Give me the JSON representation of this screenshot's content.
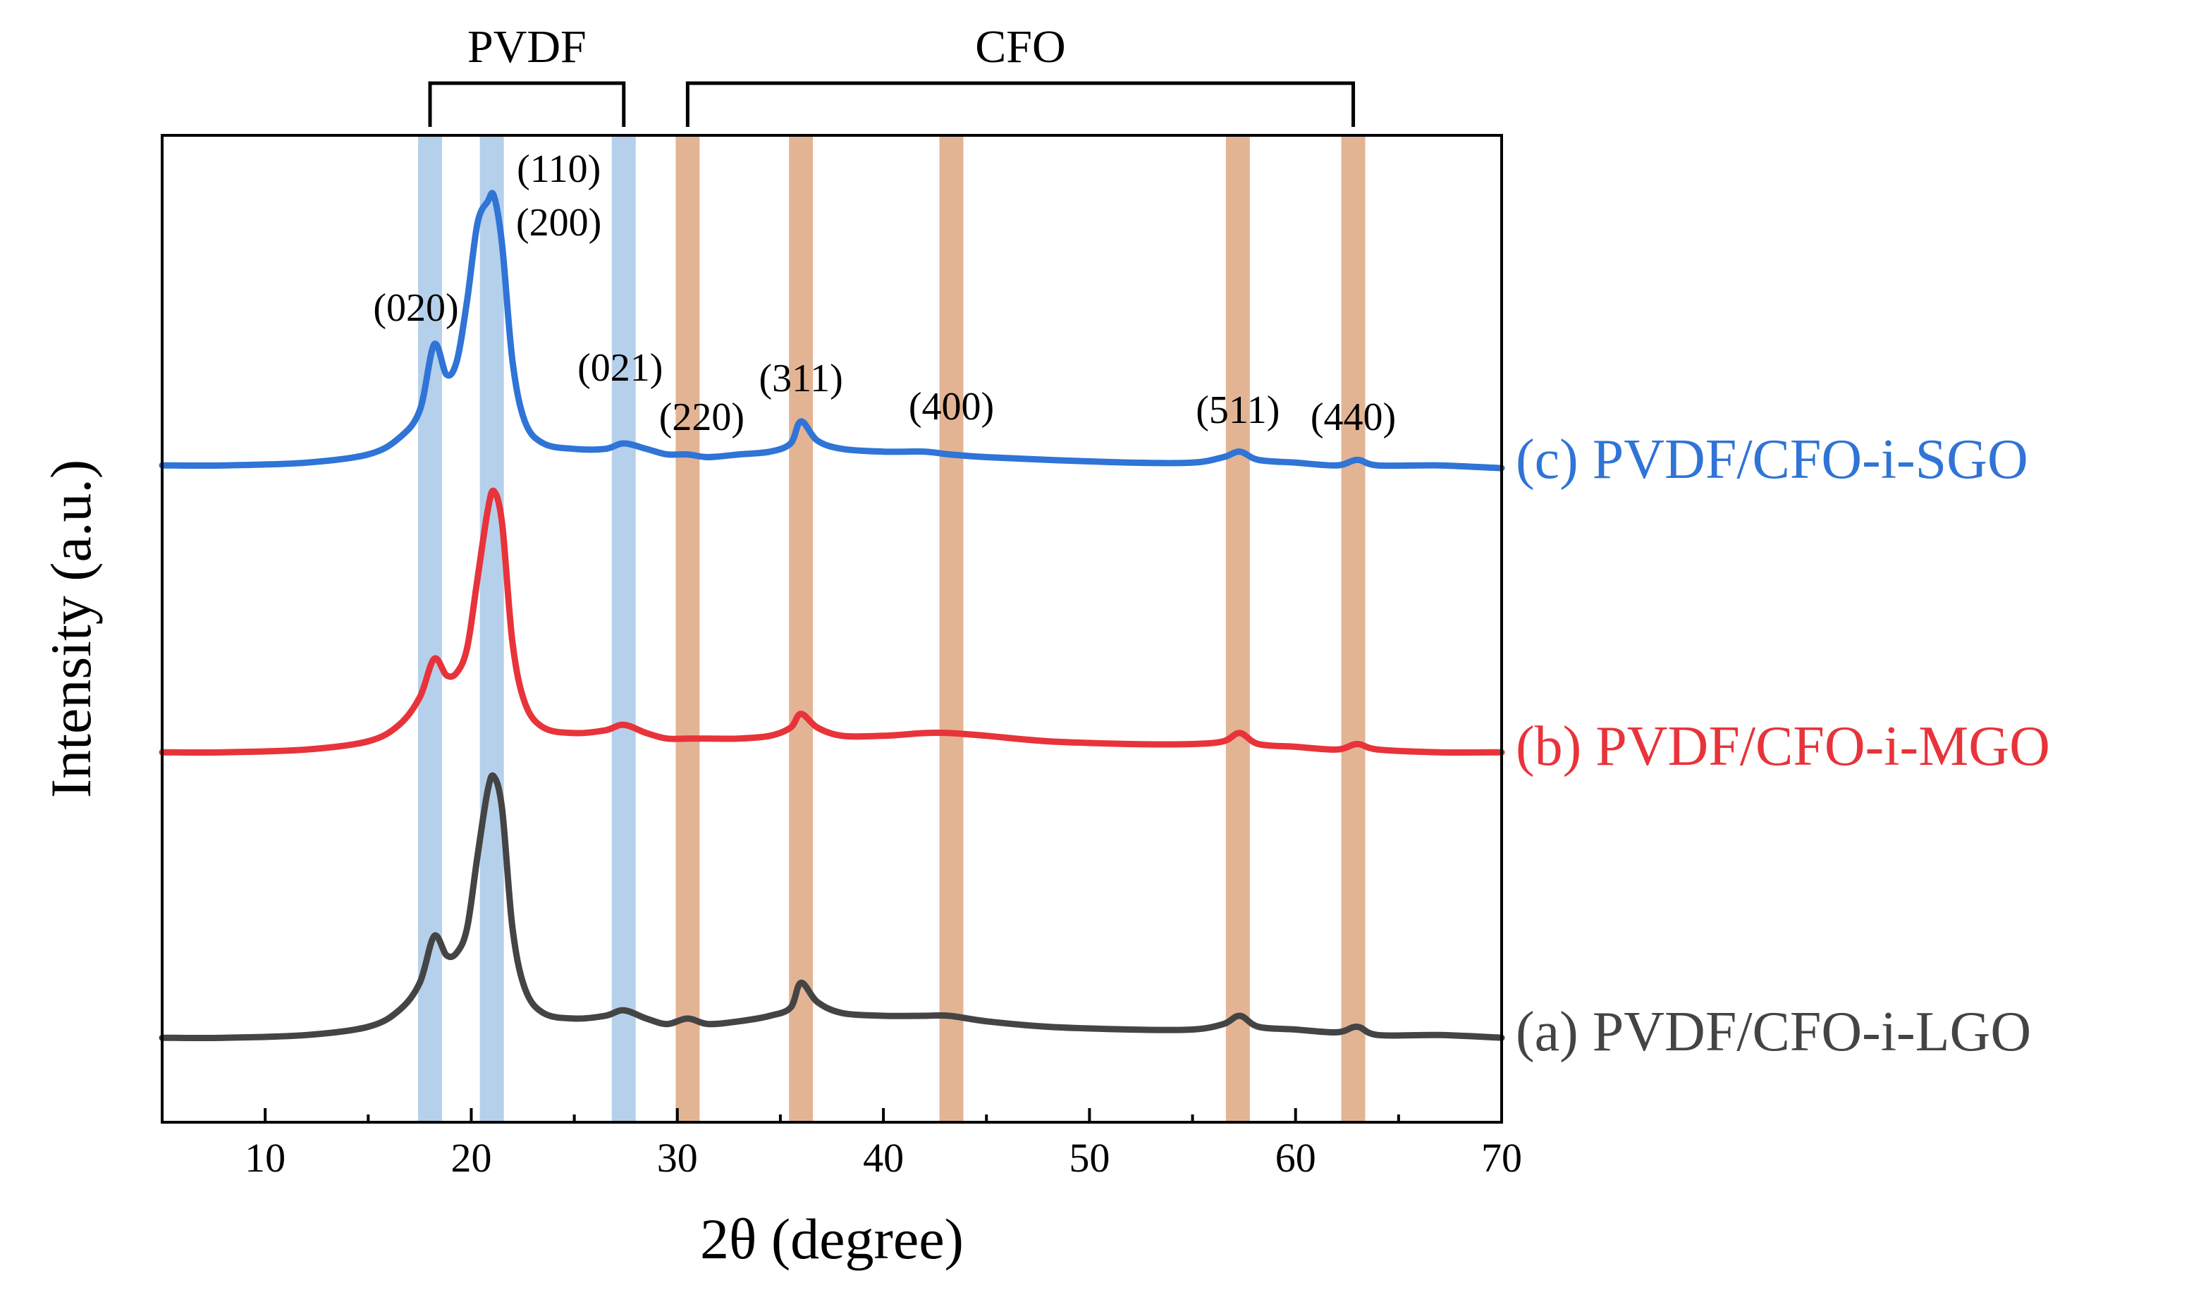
{
  "chart_data": {
    "type": "line",
    "title": "",
    "xlabel": "2θ (degree)",
    "ylabel": "Intensity (a.u.)",
    "xlim": [
      5,
      70
    ],
    "x_ticks": [
      10,
      20,
      30,
      40,
      50,
      60,
      70
    ],
    "y_ticks_shown": false,
    "grid": false,
    "legend": "labels at right end of each curve",
    "x": [
      5,
      8,
      12,
      15,
      16.5,
      17.5,
      18.2,
      18.8,
      19.3,
      19.8,
      20.3,
      20.8,
      21.1,
      21.5,
      22.0,
      22.6,
      23.5,
      25,
      26.5,
      27.4,
      28.5,
      29.5,
      30.5,
      31.5,
      33,
      34.5,
      35.5,
      36.0,
      36.8,
      38,
      40,
      42,
      43.2,
      45,
      48,
      52,
      55,
      56.5,
      57.3,
      58.2,
      60,
      62,
      63.0,
      64,
      67,
      70
    ],
    "series": [
      {
        "name": "(a) PVDF/CFO-i-LGO",
        "color": "#444444",
        "values": [
          0.02,
          0.02,
          0.03,
          0.06,
          0.12,
          0.22,
          0.39,
          0.32,
          0.33,
          0.42,
          0.68,
          0.92,
          0.97,
          0.85,
          0.42,
          0.2,
          0.11,
          0.09,
          0.1,
          0.12,
          0.09,
          0.07,
          0.09,
          0.07,
          0.08,
          0.1,
          0.13,
          0.22,
          0.15,
          0.11,
          0.1,
          0.1,
          0.1,
          0.08,
          0.06,
          0.05,
          0.05,
          0.07,
          0.1,
          0.06,
          0.05,
          0.04,
          0.06,
          0.03,
          0.03,
          0.02
        ]
      },
      {
        "name": "(b) PVDF/CFO-i-MGO",
        "color": "#e8333a",
        "values": [
          0.02,
          0.02,
          0.03,
          0.06,
          0.12,
          0.22,
          0.36,
          0.3,
          0.31,
          0.4,
          0.65,
          0.9,
          0.97,
          0.85,
          0.42,
          0.2,
          0.11,
          0.09,
          0.1,
          0.12,
          0.09,
          0.07,
          0.07,
          0.07,
          0.07,
          0.08,
          0.11,
          0.16,
          0.11,
          0.08,
          0.08,
          0.09,
          0.09,
          0.08,
          0.06,
          0.05,
          0.05,
          0.06,
          0.09,
          0.05,
          0.04,
          0.03,
          0.05,
          0.03,
          0.02,
          0.02
        ]
      },
      {
        "name": "(c) PVDF/CFO-i-SGO",
        "color": "#2f74d6",
        "values": [
          0.02,
          0.02,
          0.03,
          0.06,
          0.12,
          0.22,
          0.46,
          0.35,
          0.4,
          0.62,
          0.9,
          0.98,
          1.0,
          0.82,
          0.4,
          0.18,
          0.1,
          0.08,
          0.08,
          0.1,
          0.08,
          0.06,
          0.06,
          0.05,
          0.06,
          0.07,
          0.1,
          0.18,
          0.11,
          0.08,
          0.07,
          0.07,
          0.06,
          0.05,
          0.04,
          0.03,
          0.03,
          0.05,
          0.07,
          0.04,
          0.03,
          0.02,
          0.04,
          0.02,
          0.02,
          0.01
        ]
      }
    ],
    "bands": [
      {
        "x": 18.0,
        "phase": "PVDF",
        "label": "(020)"
      },
      {
        "x": 21.0,
        "phase": "PVDF",
        "label": "(110)\n(200)"
      },
      {
        "x": 27.4,
        "phase": "PVDF",
        "label": "(021)"
      },
      {
        "x": 30.5,
        "phase": "CFO",
        "label": "(220)"
      },
      {
        "x": 36.0,
        "phase": "CFO",
        "label": "(311)"
      },
      {
        "x": 43.3,
        "phase": "CFO",
        "label": "(400)"
      },
      {
        "x": 57.2,
        "phase": "CFO",
        "label": "(511)"
      },
      {
        "x": 62.8,
        "phase": "CFO",
        "label": "(440)"
      }
    ],
    "groups": [
      {
        "label": "PVDF",
        "from": 18.0,
        "to": 27.4
      },
      {
        "label": "CFO",
        "from": 30.5,
        "to": 62.8
      }
    ],
    "colors": {
      "pvdf_band": "#a8c8e8",
      "cfo_band": "#dea781",
      "axis": "#000000"
    }
  }
}
